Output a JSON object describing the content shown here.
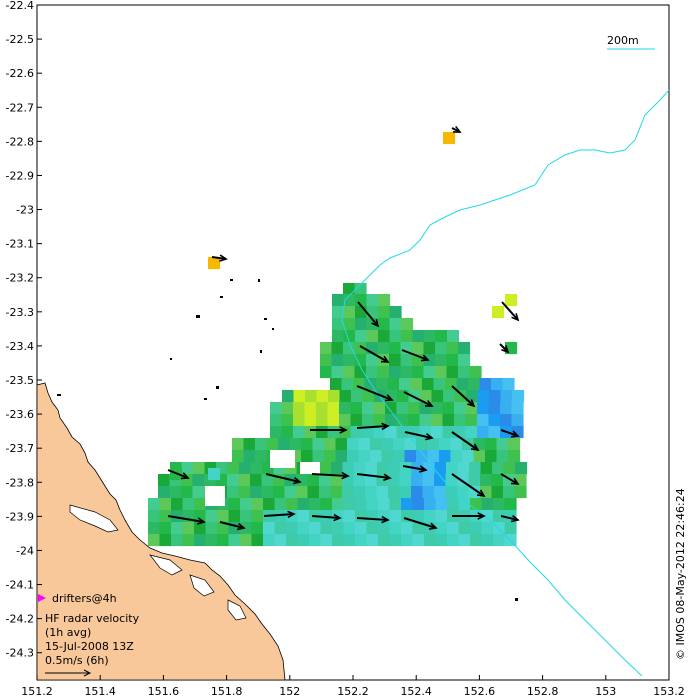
{
  "chart_data": {
    "type": "map",
    "x_ticks": [
      "151.2",
      "151.4",
      "151.6",
      "151.8",
      "152",
      "152.2",
      "152.4",
      "152.6",
      "152.8",
      "153",
      "153.2"
    ],
    "y_ticks": [
      "-22.4",
      "-22.5",
      "-22.6",
      "-22.7",
      "-22.8",
      "-22.9",
      "-23",
      "-23.1",
      "-23.2",
      "-23.3",
      "-23.4",
      "-23.5",
      "-23.6",
      "-23.7",
      "-23.8",
      "-23.9",
      "-24",
      "-24.1",
      "-24.2",
      "-24.3"
    ],
    "xlim": [
      151.2,
      153.2
    ],
    "ylim": [
      -24.38,
      -22.4
    ],
    "grid": false,
    "colors": {
      "land": "#f8c89a",
      "isobath": "#22d8e8",
      "drifter": "#ff00ff"
    },
    "scale_label": "200m",
    "legend": {
      "drifter_label": "drifters@4h",
      "lines": [
        "HF radar velocity",
        "(1h avg)",
        "15-Jul-2008 13Z",
        "0.5m/s (6h)"
      ]
    },
    "credit": "© IMOS 08-May-2012 22:46:24"
  }
}
